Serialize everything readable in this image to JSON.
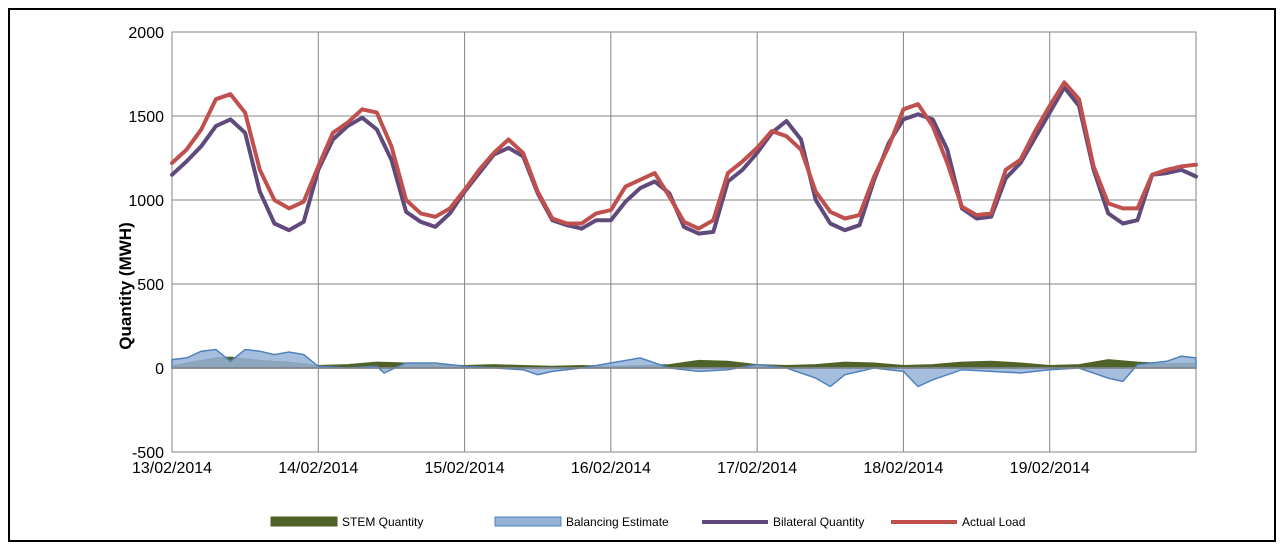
{
  "chart_data": {
    "type": "line",
    "title": "",
    "xlabel": "",
    "ylabel": "Quantity (MWH)",
    "ylim": [
      -500,
      2000
    ],
    "yticks": [
      2000,
      1500,
      1000,
      500,
      0,
      -500
    ],
    "x_ticks": [
      "13/02/2014",
      "14/02/2014",
      "15/02/2014",
      "16/02/2014",
      "17/02/2014",
      "18/02/2014",
      "19/02/2014"
    ],
    "x_range_days": [
      0,
      7
    ],
    "grid": true,
    "legend_position": "bottom",
    "series": [
      {
        "name": "STEM Quantity",
        "kind": "area",
        "color": "#4f6228",
        "x": [
          0,
          0.1,
          0.2,
          0.3,
          0.4,
          0.5,
          0.6,
          0.7,
          0.8,
          0.9,
          1.0,
          1.2,
          1.4,
          1.6,
          1.8,
          2.0,
          2.2,
          2.4,
          2.6,
          2.8,
          3.0,
          3.2,
          3.4,
          3.6,
          3.8,
          4.0,
          4.2,
          4.4,
          4.6,
          4.8,
          5.0,
          5.2,
          5.4,
          5.6,
          5.8,
          6.0,
          6.2,
          6.4,
          6.6,
          6.8,
          7.0
        ],
        "values": [
          15,
          30,
          45,
          60,
          65,
          55,
          45,
          40,
          35,
          25,
          15,
          20,
          35,
          30,
          20,
          15,
          20,
          15,
          10,
          15,
          10,
          15,
          20,
          45,
          40,
          20,
          15,
          20,
          35,
          30,
          15,
          20,
          35,
          40,
          30,
          15,
          20,
          50,
          35,
          25,
          30
        ]
      },
      {
        "name": "Balancing Estimate",
        "kind": "area",
        "color": "#95b3d7",
        "x": [
          0,
          0.1,
          0.2,
          0.3,
          0.4,
          0.5,
          0.6,
          0.7,
          0.8,
          0.9,
          1.0,
          1.2,
          1.4,
          1.45,
          1.6,
          1.8,
          2.0,
          2.2,
          2.4,
          2.5,
          2.6,
          2.8,
          3.0,
          3.2,
          3.4,
          3.6,
          3.8,
          4.0,
          4.2,
          4.4,
          4.5,
          4.6,
          4.8,
          5.0,
          5.1,
          5.2,
          5.4,
          5.6,
          5.8,
          6.0,
          6.2,
          6.4,
          6.5,
          6.6,
          6.8,
          6.9,
          7.0
        ],
        "values": [
          50,
          60,
          100,
          110,
          40,
          110,
          100,
          80,
          95,
          80,
          10,
          0,
          10,
          -30,
          30,
          30,
          10,
          0,
          -10,
          -40,
          -20,
          0,
          30,
          60,
          0,
          -20,
          -10,
          20,
          0,
          -60,
          -110,
          -40,
          0,
          -20,
          -110,
          -70,
          -10,
          -20,
          -30,
          -10,
          0,
          -60,
          -80,
          20,
          40,
          70,
          60
        ]
      },
      {
        "name": "Bilateral Quantity",
        "kind": "line",
        "color": "#604a7b",
        "x": [
          0,
          0.1,
          0.2,
          0.3,
          0.4,
          0.5,
          0.6,
          0.7,
          0.8,
          0.9,
          1.0,
          1.1,
          1.2,
          1.3,
          1.4,
          1.5,
          1.6,
          1.7,
          1.8,
          1.9,
          2.0,
          2.1,
          2.2,
          2.3,
          2.4,
          2.5,
          2.6,
          2.7,
          2.8,
          2.9,
          3.0,
          3.1,
          3.2,
          3.3,
          3.4,
          3.5,
          3.6,
          3.7,
          3.8,
          3.9,
          4.0,
          4.1,
          4.2,
          4.3,
          4.4,
          4.5,
          4.6,
          4.7,
          4.8,
          4.9,
          5.0,
          5.1,
          5.2,
          5.3,
          5.4,
          5.5,
          5.6,
          5.7,
          5.8,
          5.9,
          6.0,
          6.1,
          6.2,
          6.3,
          6.4,
          6.5,
          6.6,
          6.7,
          6.8,
          6.9,
          7.0
        ],
        "values": [
          1150,
          1230,
          1320,
          1440,
          1480,
          1400,
          1050,
          860,
          820,
          870,
          1180,
          1360,
          1440,
          1490,
          1420,
          1240,
          930,
          870,
          840,
          920,
          1050,
          1160,
          1270,
          1310,
          1260,
          1040,
          880,
          850,
          830,
          880,
          880,
          990,
          1070,
          1110,
          1040,
          840,
          800,
          810,
          1110,
          1180,
          1280,
          1400,
          1470,
          1360,
          1000,
          860,
          820,
          850,
          1120,
          1340,
          1480,
          1510,
          1480,
          1300,
          950,
          890,
          900,
          1130,
          1220,
          1370,
          1520,
          1670,
          1560,
          1180,
          920,
          860,
          880,
          1150,
          1160,
          1180,
          1140
        ]
      },
      {
        "name": "Actual Load",
        "kind": "line",
        "color": "#c0504d",
        "x": [
          0,
          0.1,
          0.2,
          0.3,
          0.4,
          0.5,
          0.6,
          0.7,
          0.8,
          0.9,
          1.0,
          1.1,
          1.2,
          1.3,
          1.4,
          1.5,
          1.6,
          1.7,
          1.8,
          1.9,
          2.0,
          2.1,
          2.2,
          2.3,
          2.4,
          2.5,
          2.6,
          2.7,
          2.8,
          2.9,
          3.0,
          3.1,
          3.2,
          3.3,
          3.4,
          3.5,
          3.6,
          3.7,
          3.8,
          3.9,
          4.0,
          4.1,
          4.2,
          4.3,
          4.4,
          4.5,
          4.6,
          4.7,
          4.8,
          4.9,
          5.0,
          5.1,
          5.2,
          5.3,
          5.4,
          5.5,
          5.6,
          5.7,
          5.8,
          5.9,
          6.0,
          6.1,
          6.2,
          6.3,
          6.4,
          6.5,
          6.6,
          6.7,
          6.8,
          6.9,
          7.0
        ],
        "values": [
          1220,
          1300,
          1420,
          1600,
          1630,
          1520,
          1180,
          1000,
          950,
          990,
          1200,
          1400,
          1460,
          1540,
          1520,
          1320,
          1000,
          920,
          900,
          950,
          1060,
          1180,
          1280,
          1360,
          1280,
          1050,
          890,
          860,
          860,
          920,
          940,
          1080,
          1120,
          1160,
          1020,
          870,
          830,
          880,
          1160,
          1230,
          1310,
          1410,
          1380,
          1300,
          1050,
          930,
          890,
          910,
          1140,
          1320,
          1540,
          1570,
          1440,
          1220,
          960,
          910,
          920,
          1180,
          1240,
          1410,
          1560,
          1700,
          1600,
          1200,
          980,
          950,
          950,
          1150,
          1180,
          1200,
          1210
        ]
      }
    ]
  }
}
